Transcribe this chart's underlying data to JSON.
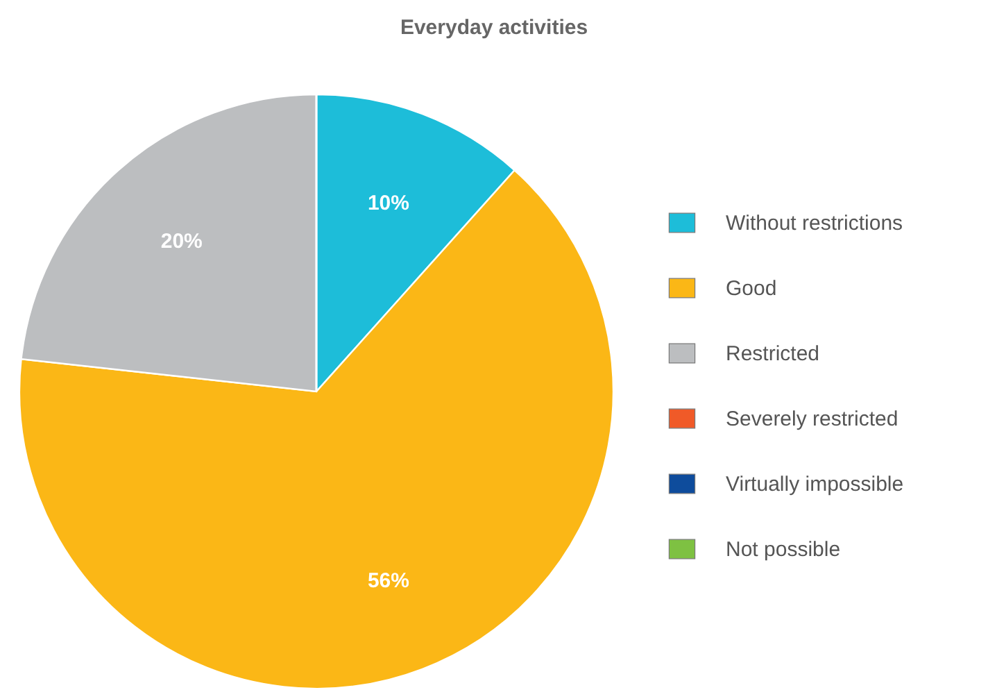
{
  "chart_data": {
    "type": "pie",
    "title": "Everyday activities",
    "categories": [
      "Without restrictions",
      "Good",
      "Restricted",
      "Severely restricted",
      "Virtually impossible",
      "Not possible"
    ],
    "values": [
      10,
      56,
      20,
      0,
      0,
      0
    ],
    "value_labels": [
      "10%",
      "56%",
      "20%",
      null,
      null,
      null
    ],
    "colors": [
      "#1dbdd9",
      "#fbb716",
      "#bcbec0",
      "#f05a28",
      "#0e4c9c",
      "#7ec142"
    ],
    "legend": "right"
  }
}
